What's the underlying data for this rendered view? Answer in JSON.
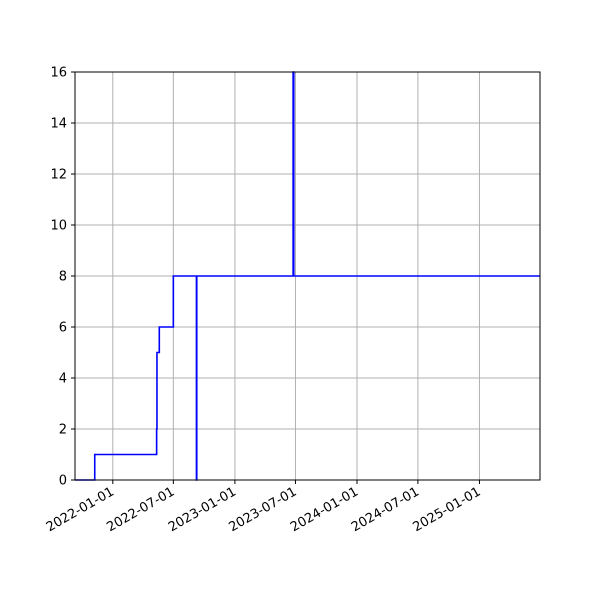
{
  "chart_data": {
    "type": "line",
    "title": "",
    "xlabel": "",
    "ylabel": "",
    "x_axis_type": "date",
    "xlim": [
      "2021-09-10",
      "2025-07-01"
    ],
    "ylim": [
      0,
      16
    ],
    "grid": true,
    "legend": "none",
    "colors": {
      "line": "#0000ff",
      "grid": "#b0b0b0",
      "axis": "#000000"
    },
    "x_ticks": [
      "2022-01-01",
      "2022-07-01",
      "2023-01-01",
      "2023-07-01",
      "2024-01-01",
      "2024-07-01",
      "2025-01-01"
    ],
    "y_ticks": [
      0,
      2,
      4,
      6,
      8,
      10,
      12,
      14,
      16
    ],
    "series": [
      {
        "x": [
          "2021-09-10",
          "2021-11-08",
          "2021-11-08",
          "2022-05-12",
          "2022-05-12",
          "2022-05-13",
          "2022-05-13",
          "2022-05-14",
          "2022-05-14",
          "2022-05-20",
          "2022-05-20",
          "2022-07-01",
          "2022-07-01",
          "2022-09-08",
          "2022-09-08",
          "2022-09-08",
          "2022-09-08",
          "2022-09-09",
          "2022-09-09",
          "2022-09-09",
          "2022-09-09",
          "2023-06-24",
          "2023-06-24",
          "2023-06-26",
          "2023-06-26",
          "2025-07-01"
        ],
        "y": [
          0,
          0,
          1,
          1,
          2,
          2,
          5,
          5,
          5,
          5,
          6,
          6,
          8,
          8,
          0,
          8,
          0,
          0,
          8,
          0,
          8,
          8,
          16,
          16,
          8,
          8
        ]
      }
    ]
  }
}
